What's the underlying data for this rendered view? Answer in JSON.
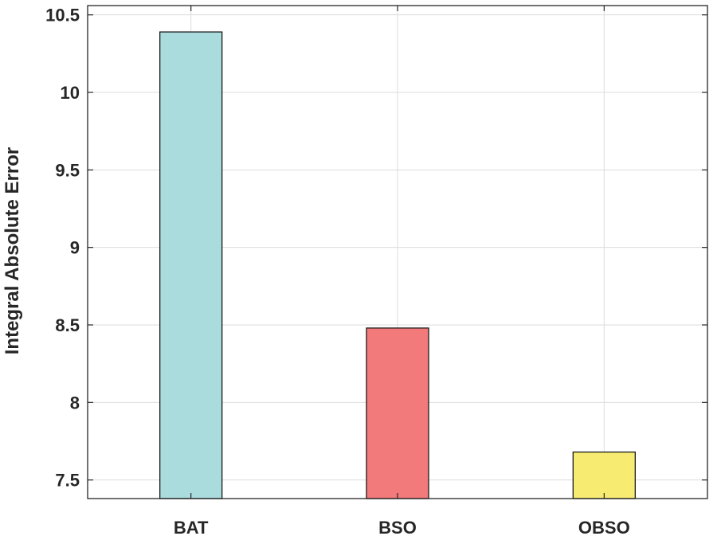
{
  "chart_data": {
    "type": "bar",
    "categories": [
      "BAT",
      "BSO",
      "OBSO"
    ],
    "values": [
      10.39,
      8.48,
      7.68
    ],
    "colors": [
      "#abdcdd",
      "#f37a7a",
      "#f7ec71"
    ],
    "bar_edge_color": "#1a1a1a",
    "title": "",
    "xlabel": "",
    "ylabel": "Integral Absolute Error",
    "ylim": [
      7.38,
      10.56
    ],
    "yticks": [
      7.5,
      8,
      8.5,
      9,
      9.5,
      10,
      10.5
    ],
    "ytick_labels": [
      "7.5",
      "8",
      "8.5",
      "9",
      "9.5",
      "10",
      "10.5"
    ],
    "grid": true,
    "legend": "none"
  }
}
